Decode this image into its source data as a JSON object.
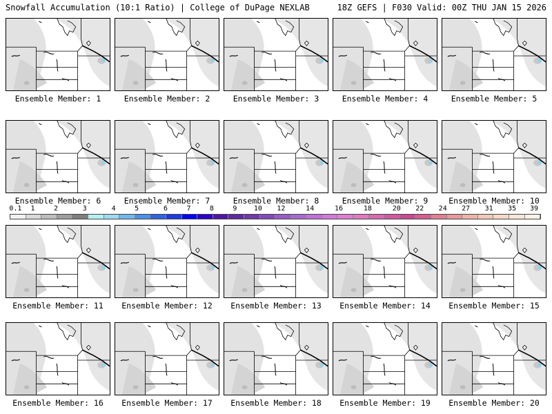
{
  "header": {
    "title_left": "Snowfall Accumulation (10:1 Ratio) | College of DuPage NEXLAB",
    "title_right": "18Z GEFS | F030 Valid: 00Z THU JAN 15 2026"
  },
  "colorbar": {
    "labels": [
      "0.1",
      "1",
      "2",
      "3",
      "4",
      "5",
      "6",
      "7",
      "8",
      "9",
      "10",
      "12",
      "14",
      "16",
      "18",
      "20",
      "22",
      "24",
      "27",
      "31",
      "35",
      "39"
    ],
    "colors": [
      "#f2f2f2",
      "#d9d9d9",
      "#bdbdbd",
      "#9e9e9e",
      "#7f7f7f",
      "#b3f0f0",
      "#9fd9f5",
      "#6fb8ee",
      "#4a90e8",
      "#2f63e0",
      "#1a3ce0",
      "#0000ff",
      "#2a00c8",
      "#4f15a8",
      "#5e2aa0",
      "#7038a8",
      "#8548b8",
      "#9a5ac8",
      "#a96ad0",
      "#bf72d8",
      "#d27ad8",
      "#df7fd0",
      "#e07ac0",
      "#d86ab0",
      "#d05aa0",
      "#c84a90",
      "#d46090",
      "#e08090",
      "#e69a9a",
      "#ecb4a8",
      "#f2c8b8",
      "#f6d8c8",
      "#fae6d8",
      "#fdf2e6"
    ]
  },
  "panels": [
    {
      "label": "Ensemble Member: 1"
    },
    {
      "label": "Ensemble Member: 2"
    },
    {
      "label": "Ensemble Member: 3"
    },
    {
      "label": "Ensemble Member: 4"
    },
    {
      "label": "Ensemble Member: 5"
    },
    {
      "label": "Ensemble Member: 6"
    },
    {
      "label": "Ensemble Member: 7"
    },
    {
      "label": "Ensemble Member: 8"
    },
    {
      "label": "Ensemble Member: 9"
    },
    {
      "label": "Ensemble Member: 10"
    },
    {
      "label": "Ensemble Member: 11"
    },
    {
      "label": "Ensemble Member: 12"
    },
    {
      "label": "Ensemble Member: 13"
    },
    {
      "label": "Ensemble Member: 14"
    },
    {
      "label": "Ensemble Member: 15"
    },
    {
      "label": "Ensemble Member: 16"
    },
    {
      "label": "Ensemble Member: 17"
    },
    {
      "label": "Ensemble Member: 18"
    },
    {
      "label": "Ensemble Member: 19"
    },
    {
      "label": "Ensemble Member: 20"
    }
  ]
}
